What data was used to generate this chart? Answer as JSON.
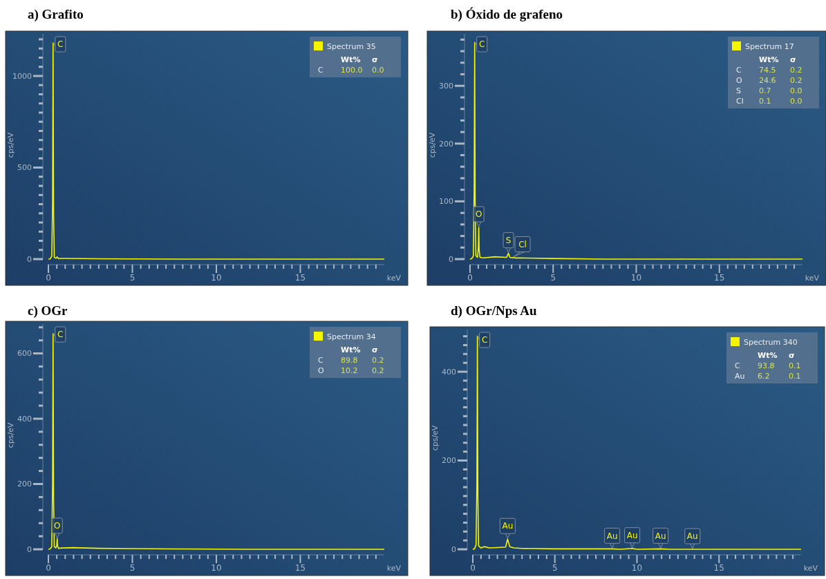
{
  "chart_data": [
    {
      "type": "line",
      "title": "a)  Grafito",
      "xlabel": "keV",
      "ylabel": "cps/eV",
      "legend": "top right",
      "xlim": [
        0,
        20
      ],
      "ylim": [
        0,
        1230
      ],
      "xticks": [
        0,
        {
          "value": 0.5,
          "label": null
        },
        {
          "value": 1,
          "label": null
        },
        {
          "value": 1.5,
          "label": null
        },
        {
          "value": 2,
          "label": null
        },
        {
          "value": 2.5,
          "label": null
        },
        {
          "value": 3,
          "label": null
        },
        {
          "value": 3.5,
          "label": null
        },
        {
          "value": 4,
          "label": null
        },
        {
          "value": 4.5,
          "label": null
        },
        5,
        {
          "value": 5.5,
          "label": null
        },
        {
          "value": 6,
          "label": null
        },
        {
          "value": 6.5,
          "label": null
        },
        {
          "value": 7,
          "label": null
        },
        {
          "value": 7.5,
          "label": null
        },
        {
          "value": 8,
          "label": null
        },
        {
          "value": 8.5,
          "label": null
        },
        {
          "value": 9,
          "label": null
        },
        {
          "value": 9.5,
          "label": null
        },
        10,
        {
          "value": 10.5,
          "label": null
        },
        {
          "value": 11,
          "label": null
        },
        {
          "value": 11.5,
          "label": null
        },
        {
          "value": 12,
          "label": null
        },
        {
          "value": 12.5,
          "label": null
        },
        {
          "value": 13,
          "label": null
        },
        {
          "value": 13.5,
          "label": null
        },
        {
          "value": 14,
          "label": null
        },
        {
          "value": 14.5,
          "label": null
        },
        15,
        {
          "value": 15.5,
          "label": null
        },
        {
          "value": 16,
          "label": null
        },
        {
          "value": 16.5,
          "label": null
        },
        {
          "value": 17,
          "label": null
        },
        {
          "value": 17.5,
          "label": null
        },
        {
          "value": 18,
          "label": null
        },
        {
          "value": 18.5,
          "label": null
        },
        {
          "value": 19,
          "label": null
        },
        {
          "value": 19.5,
          "label": null
        }
      ],
      "yticks": [
        0,
        {
          "value": 50,
          "label": null
        },
        {
          "value": 100,
          "label": null
        },
        {
          "value": 150,
          "label": null
        },
        {
          "value": 200,
          "label": null
        },
        {
          "value": 250,
          "label": null
        },
        {
          "value": 300,
          "label": null
        },
        {
          "value": 350,
          "label": null
        },
        {
          "value": 400,
          "label": null
        },
        {
          "value": 450,
          "label": null
        },
        500,
        {
          "value": 550,
          "label": null
        },
        {
          "value": 600,
          "label": null
        },
        {
          "value": 650,
          "label": null
        },
        {
          "value": 700,
          "label": null
        },
        {
          "value": 750,
          "label": null
        },
        {
          "value": 800,
          "label": null
        },
        {
          "value": 850,
          "label": null
        },
        {
          "value": 900,
          "label": null
        },
        {
          "value": 950,
          "label": null
        },
        1000,
        {
          "value": 1050,
          "label": null
        },
        {
          "value": 1100,
          "label": null
        },
        {
          "value": 1150,
          "label": null
        },
        {
          "value": 1200,
          "label": null
        }
      ],
      "series": [
        {
          "name": "Spectrum 35",
          "color": "#f5f500",
          "x": [
            0,
            0.1,
            0.2,
            0.25,
            0.28,
            0.31,
            0.35,
            0.45,
            0.52,
            0.6,
            0.8,
            1,
            2,
            3,
            5,
            8,
            12,
            20
          ],
          "values": [
            0,
            1,
            15,
            300,
            1180,
            250,
            10,
            4,
            12,
            3,
            4,
            4,
            3,
            2,
            1,
            0,
            0,
            0
          ]
        }
      ],
      "annotations": [
        {
          "text": "C",
          "x": 0.28,
          "y": 1180
        },
        "Wt%",
        "σ",
        "C",
        "100.0",
        "0.0"
      ]
    },
    {
      "type": "line",
      "title": "b)  Óxido de grafeno",
      "xlabel": "keV",
      "ylabel": "cps/eV",
      "legend": "top right",
      "xlim": [
        0,
        20
      ],
      "ylim": [
        0,
        390
      ],
      "xticks": [
        0,
        {
          "value": 0.5,
          "label": null
        },
        {
          "value": 1,
          "label": null
        },
        {
          "value": 1.5,
          "label": null
        },
        {
          "value": 2,
          "label": null
        },
        {
          "value": 2.5,
          "label": null
        },
        {
          "value": 3,
          "label": null
        },
        {
          "value": 3.5,
          "label": null
        },
        {
          "value": 4,
          "label": null
        },
        {
          "value": 4.5,
          "label": null
        },
        5,
        {
          "value": 5.5,
          "label": null
        },
        {
          "value": 6,
          "label": null
        },
        {
          "value": 6.5,
          "label": null
        },
        {
          "value": 7,
          "label": null
        },
        {
          "value": 7.5,
          "label": null
        },
        {
          "value": 8,
          "label": null
        },
        {
          "value": 8.5,
          "label": null
        },
        {
          "value": 9,
          "label": null
        },
        {
          "value": 9.5,
          "label": null
        },
        10,
        {
          "value": 10.5,
          "label": null
        },
        {
          "value": 11,
          "label": null
        },
        {
          "value": 11.5,
          "label": null
        },
        {
          "value": 12,
          "label": null
        },
        {
          "value": 12.5,
          "label": null
        },
        {
          "value": 13,
          "label": null
        },
        {
          "value": 13.5,
          "label": null
        },
        {
          "value": 14,
          "label": null
        },
        {
          "value": 14.5,
          "label": null
        },
        15,
        {
          "value": 15.5,
          "label": null
        },
        {
          "value": 16,
          "label": null
        },
        {
          "value": 16.5,
          "label": null
        },
        {
          "value": 17,
          "label": null
        },
        {
          "value": 17.5,
          "label": null
        },
        {
          "value": 18,
          "label": null
        },
        {
          "value": 18.5,
          "label": null
        },
        {
          "value": 19,
          "label": null
        },
        {
          "value": 19.5,
          "label": null
        }
      ],
      "yticks": [
        0,
        {
          "value": 20,
          "label": null
        },
        {
          "value": 40,
          "label": null
        },
        {
          "value": 60,
          "label": null
        },
        {
          "value": 80,
          "label": null
        },
        100,
        {
          "value": 120,
          "label": null
        },
        {
          "value": 140,
          "label": null
        },
        {
          "value": 160,
          "label": null
        },
        {
          "value": 180,
          "label": null
        },
        200,
        {
          "value": 220,
          "label": null
        },
        {
          "value": 240,
          "label": null
        },
        {
          "value": 260,
          "label": null
        },
        {
          "value": 280,
          "label": null
        },
        300,
        {
          "value": 320,
          "label": null
        },
        {
          "value": 340,
          "label": null
        },
        {
          "value": 360,
          "label": null
        },
        {
          "value": 380,
          "label": null
        }
      ],
      "series": [
        {
          "name": "Spectrum 17",
          "color": "#f5f500",
          "x": [
            0,
            0.1,
            0.2,
            0.25,
            0.28,
            0.31,
            0.35,
            0.45,
            0.5,
            0.525,
            0.55,
            0.6,
            0.8,
            1.5,
            2.2,
            2.31,
            2.4,
            2.55,
            2.62,
            2.7,
            3,
            5,
            8,
            12,
            20
          ],
          "values": [
            0,
            1,
            5,
            120,
            375,
            100,
            6,
            3,
            20,
            55,
            15,
            3,
            2,
            4,
            3,
            10,
            3,
            2,
            3,
            2,
            2,
            1,
            0,
            0,
            0
          ]
        }
      ],
      "annotations": [
        {
          "text": "C",
          "x": 0.28,
          "y": 375
        },
        {
          "text": "O",
          "x": 0.525,
          "y": 55
        },
        {
          "text": "S",
          "x": 2.31,
          "y": 10
        },
        {
          "text": "Cl",
          "x": 2.62,
          "y": 3
        },
        "Wt%",
        "σ",
        "C",
        "74.5",
        "0.2",
        "O",
        "24.6",
        "0.2",
        "S",
        "0.7",
        "0.0",
        "Cl",
        "0.1",
        "0.0"
      ]
    },
    {
      "type": "line",
      "title": "c)  OGr",
      "xlabel": "keV",
      "ylabel": "cps/eV",
      "legend": "top right",
      "xlim": [
        0,
        20
      ],
      "ylim": [
        0,
        690
      ],
      "xticks": [
        0,
        {
          "value": 0.5,
          "label": null
        },
        {
          "value": 1,
          "label": null
        },
        {
          "value": 1.5,
          "label": null
        },
        {
          "value": 2,
          "label": null
        },
        {
          "value": 2.5,
          "label": null
        },
        {
          "value": 3,
          "label": null
        },
        {
          "value": 3.5,
          "label": null
        },
        {
          "value": 4,
          "label": null
        },
        {
          "value": 4.5,
          "label": null
        },
        5,
        {
          "value": 5.5,
          "label": null
        },
        {
          "value": 6,
          "label": null
        },
        {
          "value": 6.5,
          "label": null
        },
        {
          "value": 7,
          "label": null
        },
        {
          "value": 7.5,
          "label": null
        },
        {
          "value": 8,
          "label": null
        },
        {
          "value": 8.5,
          "label": null
        },
        {
          "value": 9,
          "label": null
        },
        {
          "value": 9.5,
          "label": null
        },
        10,
        {
          "value": 10.5,
          "label": null
        },
        {
          "value": 11,
          "label": null
        },
        {
          "value": 11.5,
          "label": null
        },
        {
          "value": 12,
          "label": null
        },
        {
          "value": 12.5,
          "label": null
        },
        {
          "value": 13,
          "label": null
        },
        {
          "value": 13.5,
          "label": null
        },
        {
          "value": 14,
          "label": null
        },
        {
          "value": 14.5,
          "label": null
        },
        15,
        {
          "value": 15.5,
          "label": null
        },
        {
          "value": 16,
          "label": null
        },
        {
          "value": 16.5,
          "label": null
        },
        {
          "value": 17,
          "label": null
        },
        {
          "value": 17.5,
          "label": null
        },
        {
          "value": 18,
          "label": null
        },
        {
          "value": 18.5,
          "label": null
        },
        {
          "value": 19,
          "label": null
        },
        {
          "value": 19.5,
          "label": null
        }
      ],
      "yticks": [
        0,
        {
          "value": 40,
          "label": null
        },
        {
          "value": 80,
          "label": null
        },
        {
          "value": 120,
          "label": null
        },
        {
          "value": 160,
          "label": null
        },
        200,
        {
          "value": 240,
          "label": null
        },
        {
          "value": 280,
          "label": null
        },
        {
          "value": 320,
          "label": null
        },
        {
          "value": 360,
          "label": null
        },
        400,
        {
          "value": 440,
          "label": null
        },
        {
          "value": 480,
          "label": null
        },
        {
          "value": 520,
          "label": null
        },
        {
          "value": 560,
          "label": null
        },
        600,
        {
          "value": 640,
          "label": null
        },
        {
          "value": 680,
          "label": null
        }
      ],
      "series": [
        {
          "name": "Spectrum 34",
          "color": "#f5f500",
          "x": [
            0,
            0.1,
            0.2,
            0.25,
            0.28,
            0.31,
            0.35,
            0.45,
            0.5,
            0.525,
            0.55,
            0.6,
            0.8,
            1.5,
            3,
            5,
            8,
            12,
            20
          ],
          "values": [
            0,
            1,
            8,
            200,
            660,
            150,
            8,
            4,
            12,
            32,
            10,
            3,
            4,
            5,
            3,
            2,
            1,
            0,
            0
          ]
        }
      ],
      "annotations": [
        {
          "text": "C",
          "x": 0.28,
          "y": 660
        },
        {
          "text": "O",
          "x": 0.525,
          "y": 32
        },
        "Wt%",
        "σ",
        "C",
        "89.8",
        "0.2",
        "O",
        "10.2",
        "0.2"
      ]
    },
    {
      "type": "line",
      "title": "d)  OGr/Nps Au",
      "xlabel": "keV",
      "ylabel": "cps/eV",
      "legend": "top right",
      "xlim": [
        0,
        20
      ],
      "ylim": [
        0,
        495
      ],
      "xticks": [
        0,
        {
          "value": 0.5,
          "label": null
        },
        {
          "value": 1,
          "label": null
        },
        {
          "value": 1.5,
          "label": null
        },
        {
          "value": 2,
          "label": null
        },
        {
          "value": 2.5,
          "label": null
        },
        {
          "value": 3,
          "label": null
        },
        {
          "value": 3.5,
          "label": null
        },
        {
          "value": 4,
          "label": null
        },
        {
          "value": 4.5,
          "label": null
        },
        5,
        {
          "value": 5.5,
          "label": null
        },
        {
          "value": 6,
          "label": null
        },
        {
          "value": 6.5,
          "label": null
        },
        {
          "value": 7,
          "label": null
        },
        {
          "value": 7.5,
          "label": null
        },
        {
          "value": 8,
          "label": null
        },
        {
          "value": 8.5,
          "label": null
        },
        {
          "value": 9,
          "label": null
        },
        {
          "value": 9.5,
          "label": null
        },
        10,
        {
          "value": 10.5,
          "label": null
        },
        {
          "value": 11,
          "label": null
        },
        {
          "value": 11.5,
          "label": null
        },
        {
          "value": 12,
          "label": null
        },
        {
          "value": 12.5,
          "label": null
        },
        {
          "value": 13,
          "label": null
        },
        {
          "value": 13.5,
          "label": null
        },
        {
          "value": 14,
          "label": null
        },
        {
          "value": 14.5,
          "label": null
        },
        15,
        {
          "value": 15.5,
          "label": null
        },
        {
          "value": 16,
          "label": null
        },
        {
          "value": 16.5,
          "label": null
        },
        {
          "value": 17,
          "label": null
        },
        {
          "value": 17.5,
          "label": null
        },
        {
          "value": 18,
          "label": null
        },
        {
          "value": 18.5,
          "label": null
        },
        {
          "value": 19,
          "label": null
        },
        {
          "value": 19.5,
          "label": null
        }
      ],
      "yticks": [
        0,
        {
          "value": 20,
          "label": null
        },
        {
          "value": 40,
          "label": null
        },
        {
          "value": 60,
          "label": null
        },
        {
          "value": 80,
          "label": null
        },
        {
          "value": 100,
          "label": null
        },
        {
          "value": 120,
          "label": null
        },
        {
          "value": 140,
          "label": null
        },
        {
          "value": 160,
          "label": null
        },
        {
          "value": 180,
          "label": null
        },
        200,
        {
          "value": 220,
          "label": null
        },
        {
          "value": 240,
          "label": null
        },
        {
          "value": 260,
          "label": null
        },
        {
          "value": 280,
          "label": null
        },
        {
          "value": 300,
          "label": null
        },
        {
          "value": 320,
          "label": null
        },
        {
          "value": 340,
          "label": null
        },
        {
          "value": 360,
          "label": null
        },
        {
          "value": 380,
          "label": null
        },
        400,
        {
          "value": 420,
          "label": null
        },
        {
          "value": 440,
          "label": null
        },
        {
          "value": 460,
          "label": null
        },
        {
          "value": 480,
          "label": null
        }
      ],
      "series": [
        {
          "name": "Spectrum 340",
          "color": "#f5f500",
          "x": [
            0,
            0.1,
            0.2,
            0.25,
            0.28,
            0.31,
            0.35,
            0.5,
            0.7,
            1,
            1.5,
            2,
            2.12,
            2.25,
            2.5,
            3,
            5,
            8,
            8.49,
            9,
            9.71,
            10,
            11.44,
            12,
            13.38,
            15,
            20
          ],
          "values": [
            0,
            1,
            10,
            150,
            480,
            120,
            8,
            3,
            6,
            3,
            4,
            5,
            23,
            6,
            3,
            2,
            1,
            1,
            1,
            0,
            2,
            0,
            1,
            0,
            0,
            0,
            0
          ]
        }
      ],
      "annotations": [
        {
          "text": "C",
          "x": 0.28,
          "y": 480
        },
        {
          "text": "Au",
          "x": 2.12,
          "y": 23
        },
        {
          "text": "Au",
          "x": 8.49,
          "y": 1
        },
        {
          "text": "Au",
          "x": 9.71,
          "y": 2
        },
        {
          "text": "Au",
          "x": 11.44,
          "y": 1
        },
        {
          "text": "Au",
          "x": 13.38,
          "y": 0
        },
        "Wt%",
        "σ",
        "C",
        "93.8",
        "0.1",
        "Au",
        "6.2",
        "0.1"
      ]
    }
  ]
}
